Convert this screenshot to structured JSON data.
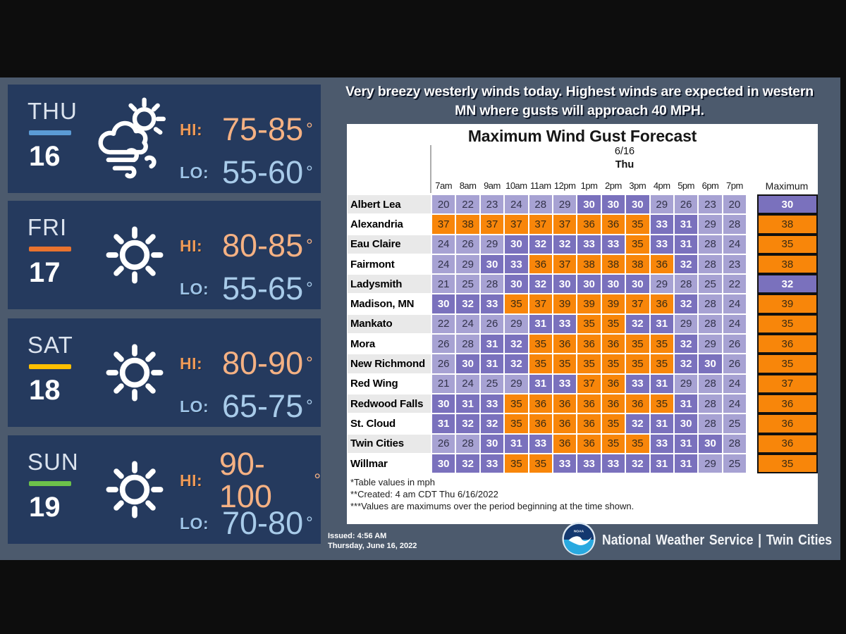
{
  "headline": {
    "line1": "Very breezy westerly winds today. Highest winds are expected in western",
    "line2": "MN where gusts will approach 40 MPH."
  },
  "forecast": {
    "hi_label": "HI:",
    "lo_label": "LO:",
    "degree": "°",
    "cards": [
      {
        "day": "THU",
        "date": "16",
        "accent": "#5b9bd5",
        "icon": "wind-partly-cloudy-icon",
        "hi": "75-85",
        "lo": "55-60"
      },
      {
        "day": "FRI",
        "date": "17",
        "accent": "#e9732e",
        "icon": "sun-icon",
        "hi": "80-85",
        "lo": "55-65"
      },
      {
        "day": "SAT",
        "date": "18",
        "accent": "#ffc000",
        "icon": "sun-icon",
        "hi": "80-90",
        "lo": "65-75"
      },
      {
        "day": "SUN",
        "date": "19",
        "accent": "#6cc24a",
        "icon": "sun-icon",
        "hi": "90-100",
        "lo": "70-80"
      }
    ]
  },
  "chart_data": {
    "type": "heatmap",
    "title": "Maximum Wind Gust Forecast",
    "date_label": "6/16",
    "day_label": "Thu",
    "units": "mph",
    "columns": [
      "7am",
      "8am",
      "9am",
      "10am",
      "11am",
      "12pm",
      "1pm",
      "2pm",
      "3pm",
      "4pm",
      "5pm",
      "6pm",
      "7pm"
    ],
    "max_label": "Maximum",
    "rows": [
      {
        "city": "Albert Lea",
        "values": [
          20,
          22,
          23,
          24,
          28,
          29,
          30,
          30,
          30,
          29,
          26,
          23,
          20
        ],
        "max": 30
      },
      {
        "city": "Alexandria",
        "values": [
          37,
          38,
          37,
          37,
          37,
          37,
          36,
          36,
          35,
          33,
          31,
          29,
          28
        ],
        "max": 38
      },
      {
        "city": "Eau Claire",
        "values": [
          24,
          26,
          29,
          30,
          32,
          32,
          33,
          33,
          35,
          33,
          31,
          28,
          24
        ],
        "max": 35
      },
      {
        "city": "Fairmont",
        "values": [
          24,
          29,
          30,
          33,
          36,
          37,
          38,
          38,
          38,
          36,
          32,
          28,
          23
        ],
        "max": 38
      },
      {
        "city": "Ladysmith",
        "values": [
          21,
          25,
          28,
          30,
          32,
          30,
          30,
          30,
          30,
          29,
          28,
          25,
          22
        ],
        "max": 32
      },
      {
        "city": "Madison, MN",
        "values": [
          30,
          32,
          33,
          35,
          37,
          39,
          39,
          39,
          37,
          36,
          32,
          28,
          24
        ],
        "max": 39
      },
      {
        "city": "Mankato",
        "values": [
          22,
          24,
          26,
          29,
          31,
          33,
          35,
          35,
          32,
          31,
          29,
          28,
          24
        ],
        "max": 35
      },
      {
        "city": "Mora",
        "values": [
          26,
          28,
          31,
          32,
          35,
          36,
          36,
          36,
          35,
          35,
          32,
          29,
          26
        ],
        "max": 36
      },
      {
        "city": "New Richmond",
        "values": [
          26,
          30,
          31,
          32,
          35,
          35,
          35,
          35,
          35,
          35,
          32,
          30,
          26
        ],
        "max": 35
      },
      {
        "city": "Red Wing",
        "values": [
          21,
          24,
          25,
          29,
          31,
          33,
          37,
          36,
          33,
          31,
          29,
          28,
          24
        ],
        "max": 37
      },
      {
        "city": "Redwood Falls",
        "values": [
          30,
          31,
          33,
          35,
          36,
          36,
          36,
          36,
          36,
          35,
          31,
          28,
          24
        ],
        "max": 36
      },
      {
        "city": "St. Cloud",
        "values": [
          31,
          32,
          32,
          35,
          36,
          36,
          36,
          35,
          32,
          31,
          30,
          28,
          25
        ],
        "max": 36
      },
      {
        "city": "Twin Cities",
        "values": [
          26,
          28,
          30,
          31,
          33,
          36,
          36,
          35,
          35,
          33,
          31,
          30,
          28
        ],
        "max": 36
      },
      {
        "city": "Willmar",
        "values": [
          30,
          32,
          33,
          35,
          35,
          33,
          33,
          33,
          32,
          31,
          31,
          29,
          25
        ],
        "max": 35
      }
    ],
    "color_scale": {
      "below_30": "#a7a2d3",
      "30_to_34": "#7a71bd",
      "35_plus": "#f8860a"
    },
    "footnotes": [
      "*Table values in mph",
      "**Created: 4 am CDT Thu 6/16/2022",
      "***Values are maximums over the period beginning at the time shown."
    ]
  },
  "footer": {
    "issued_line1": "Issued: 4:56 AM",
    "issued_line2": "Thursday, June 16, 2022",
    "brand": "National Weather Service | Twin Cities",
    "logo": "noaa-logo"
  }
}
